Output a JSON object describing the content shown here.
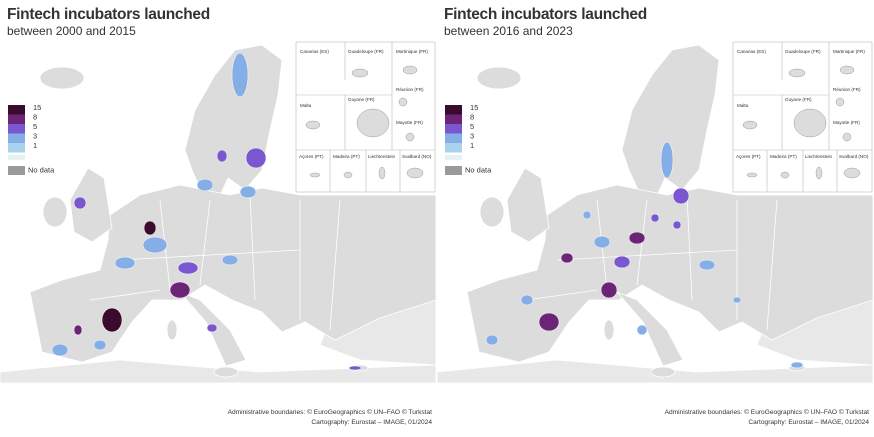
{
  "panels": [
    {
      "title": "Fintech incubators launched",
      "subtitle": "between 2000 and 2015",
      "legend": {
        "classes": [
          {
            "label": 15,
            "color": "#3a0b2e"
          },
          {
            "label": 8,
            "color": "#6c2477"
          },
          {
            "label": 5,
            "color": "#7b57cf"
          },
          {
            "label": 3,
            "color": "#86aee6"
          },
          {
            "label": 1,
            "color": "#a9d3ec"
          }
        ],
        "no_data": "No data",
        "no_data_color": "#9a9a9a"
      },
      "insets": [
        "Canarias (ES)",
        "Guadeloupe (FR)",
        "Martinique (FR)",
        "Réunion (FR)",
        "Malta",
        "Guyane (FR)",
        "Mayotte (FR)",
        "Açores (PT)",
        "Madeira (PT)",
        "Liechtenstein",
        "Svalbard (NO)"
      ],
      "credits": [
        "Administrative boundaries: © EuroGeographics © UN–FAO © Turkstat",
        "Cartography: Eurostat – IMAGE, 01/2024"
      ]
    },
    {
      "title": "Fintech incubators launched",
      "subtitle": "between 2016 and 2023",
      "legend": {
        "classes": [
          {
            "label": 15,
            "color": "#3a0b2e"
          },
          {
            "label": 8,
            "color": "#6c2477"
          },
          {
            "label": 5,
            "color": "#7b57cf"
          },
          {
            "label": 3,
            "color": "#86aee6"
          },
          {
            "label": 1,
            "color": "#a9d3ec"
          }
        ],
        "no_data": "No data",
        "no_data_color": "#9a9a9a"
      },
      "insets": [
        "Canarias (ES)",
        "Guadeloupe (FR)",
        "Martinique (FR)",
        "Réunion (FR)",
        "Malta",
        "Guyane (FR)",
        "Mayotte (FR)",
        "Açores (PT)",
        "Madeira (PT)",
        "Liechtenstein",
        "Svalbard (NO)"
      ],
      "credits": [
        "Administrative boundaries: © EuroGeographics © UN–FAO © Turkstat",
        "Cartography: Eurostat – IMAGE, 01/2024"
      ]
    }
  ]
}
